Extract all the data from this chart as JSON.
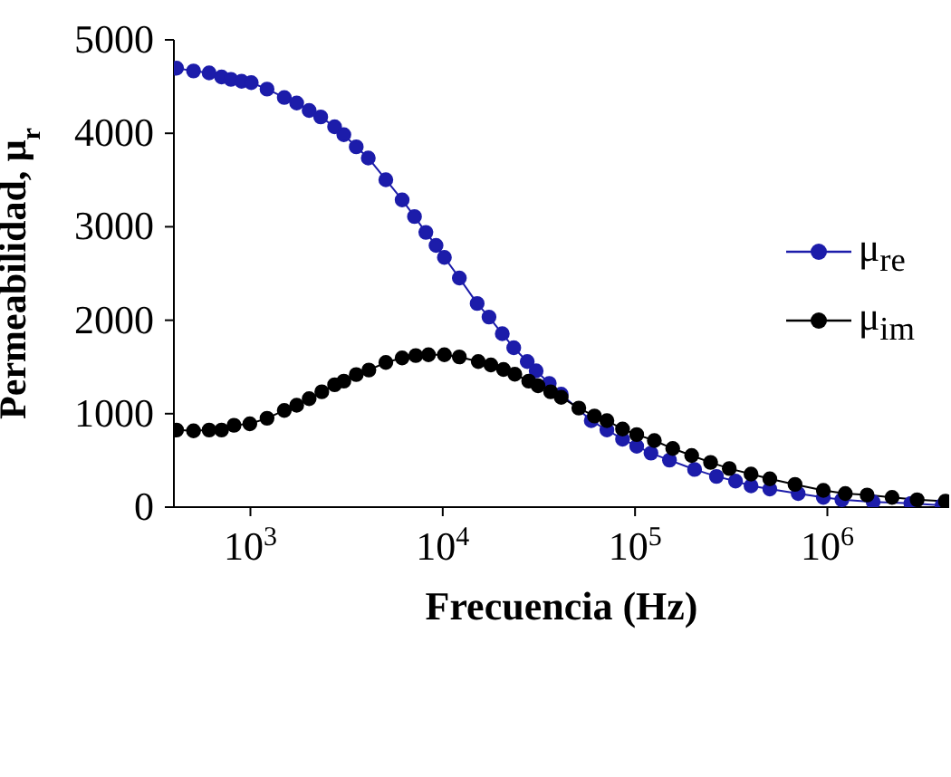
{
  "chart_data": {
    "type": "line",
    "xlabel": "Frecuencia (Hz)",
    "ylabel": "Permeabilidad, μ$_{r}$",
    "log": "x",
    "xlim": [
      400,
      4300000
    ],
    "xticks": [
      {
        "value": 1000,
        "label": "10$^{3}$"
      },
      {
        "value": 10000,
        "label": "10$^{4}$"
      },
      {
        "value": 100000,
        "label": "10$^{5}$"
      },
      {
        "value": 1000000,
        "label": "10$^{6}$"
      }
    ],
    "ylim": [
      0,
      5000
    ],
    "yticks": [
      0,
      1000,
      2000,
      3000,
      4000,
      5000
    ],
    "grid": false,
    "legend": "right",
    "marker": "circle",
    "line_style": "solid",
    "series": [
      {
        "name": "μ$_{re}$",
        "color": "#1c1caa",
        "x": [
          413,
          506,
          610,
          708,
          792,
          900,
          1010,
          1220,
          1500,
          1740,
          2020,
          2320,
          2740,
          3060,
          3550,
          4100,
          5060,
          6150,
          7130,
          8170,
          9230,
          10200,
          12200,
          15100,
          17400,
          20400,
          23400,
          27500,
          30600,
          35800,
          41300,
          59200,
          71400,
          86100,
          102000,
          121000,
          151000,
          204000,
          265000,
          333000,
          401000,
          502000,
          705000,
          953000,
          1190000,
          1730000,
          2720000,
          3950000
        ],
        "values": [
          4697,
          4667,
          4646,
          4602,
          4577,
          4557,
          4542,
          4473,
          4383,
          4324,
          4244,
          4175,
          4070,
          3985,
          3855,
          3736,
          3503,
          3288,
          3109,
          2940,
          2801,
          2672,
          2452,
          2179,
          2034,
          1855,
          1706,
          1557,
          1458,
          1324,
          1209,
          925,
          826,
          727,
          652,
          578,
          503,
          403,
          328,
          279,
          228,
          194,
          145,
          104,
          79,
          55,
          40,
          19
        ]
      },
      {
        "name": "μ$_{im}$",
        "color": "#000000",
        "x": [
          413,
          506,
          610,
          708,
          822,
          993,
          1220,
          1500,
          1740,
          2020,
          2350,
          2740,
          3060,
          3550,
          4130,
          5060,
          6150,
          7240,
          8430,
          10200,
          12200,
          15300,
          17800,
          20700,
          23700,
          28000,
          31300,
          36400,
          41300,
          51000,
          61500,
          71400,
          86100,
          102000,
          126000,
          157000,
          197000,
          247000,
          309000,
          401000,
          502000,
          679000,
          953000,
          1240000,
          1610000,
          2170000,
          2930000,
          4110000
        ],
        "values": [
          825,
          816,
          825,
          825,
          876,
          891,
          951,
          1035,
          1090,
          1160,
          1234,
          1309,
          1348,
          1418,
          1467,
          1548,
          1597,
          1622,
          1631,
          1631,
          1607,
          1557,
          1522,
          1473,
          1422,
          1348,
          1299,
          1234,
          1175,
          1060,
          975,
          925,
          836,
          776,
          712,
          627,
          552,
          478,
          413,
          354,
          303,
          243,
          179,
          145,
          130,
          104,
          79,
          64
        ]
      }
    ]
  }
}
